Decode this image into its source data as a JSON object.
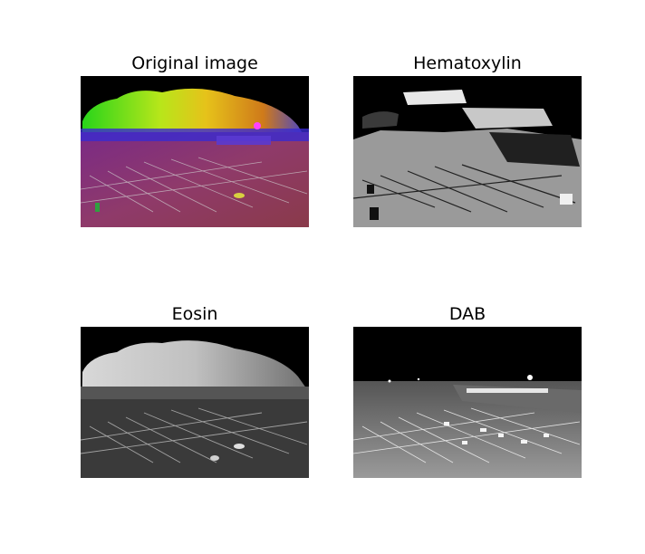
{
  "figure": {
    "panels": [
      {
        "title": "Original image"
      },
      {
        "title": "Hematoxylin"
      },
      {
        "title": "Eosin"
      },
      {
        "title": "DAB"
      }
    ]
  }
}
